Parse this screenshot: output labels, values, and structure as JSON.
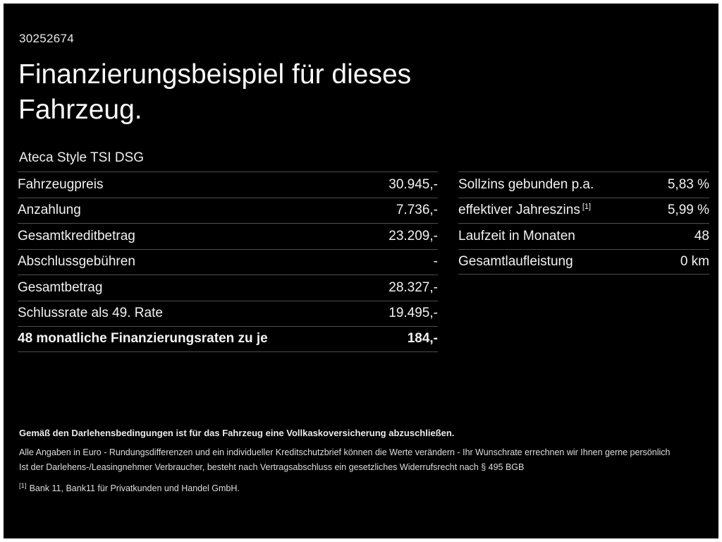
{
  "page": {
    "id_number": "30252674",
    "title_line1": "Finanzierungsbeispiel für dieses",
    "title_line2": "Fahrzeug.",
    "subtitle": "Ateca Style TSI DSG"
  },
  "left_table": {
    "rows": [
      {
        "label": "Fahrzeugpreis",
        "value": "30.945,-"
      },
      {
        "label": "Anzahlung",
        "value": "7.736,-"
      },
      {
        "label": "Gesamtkreditbetrag",
        "value": "23.209,-"
      },
      {
        "label": "Abschlussgebühren",
        "value": "-"
      },
      {
        "label": "Gesamtbetrag",
        "value": "28.327,-"
      },
      {
        "label": "Schlussrate als 49. Rate",
        "value": "19.495,-"
      },
      {
        "label": "48 monatliche Finanzierungsraten zu je",
        "value": "184,-"
      }
    ]
  },
  "right_table": {
    "rows": [
      {
        "label": "Sollzins gebunden p.a.",
        "sup": "",
        "value": "5,83 %"
      },
      {
        "label": "effektiver Jahreszins",
        "sup": "[1]",
        "value": "5,99 %"
      },
      {
        "label": "Laufzeit in Monaten",
        "sup": "",
        "value": "48"
      },
      {
        "label": "Gesamtlaufleistung",
        "sup": "",
        "value": "0 km"
      }
    ]
  },
  "footnotes": {
    "line1": "Gemäß den Darlehensbedingungen ist für das Fahrzeug eine Vollkaskoversicherung abzuschließen.",
    "line2": "Alle Angaben in Euro - Rundungsdifferenzen und ein individueller Kreditschutzbrief können die Werte verändern - Ihr Wunschrate errechnen wir Ihnen gerne persönlich",
    "line3": "Ist der Darlehens-/Leasingnehmer Verbraucher, besteht nach Vertragsabschluss ein gesetzliches Widerrufsrecht nach § 495 BGB",
    "line4_marker": "[1]",
    "line4": "Bank 11, Bank11 für Privatkunden und Handel GmbH."
  },
  "colors": {
    "background": "#000000",
    "frame": "#ffffff",
    "text": "#f2f2f2",
    "separator": "#4d4d4d"
  }
}
